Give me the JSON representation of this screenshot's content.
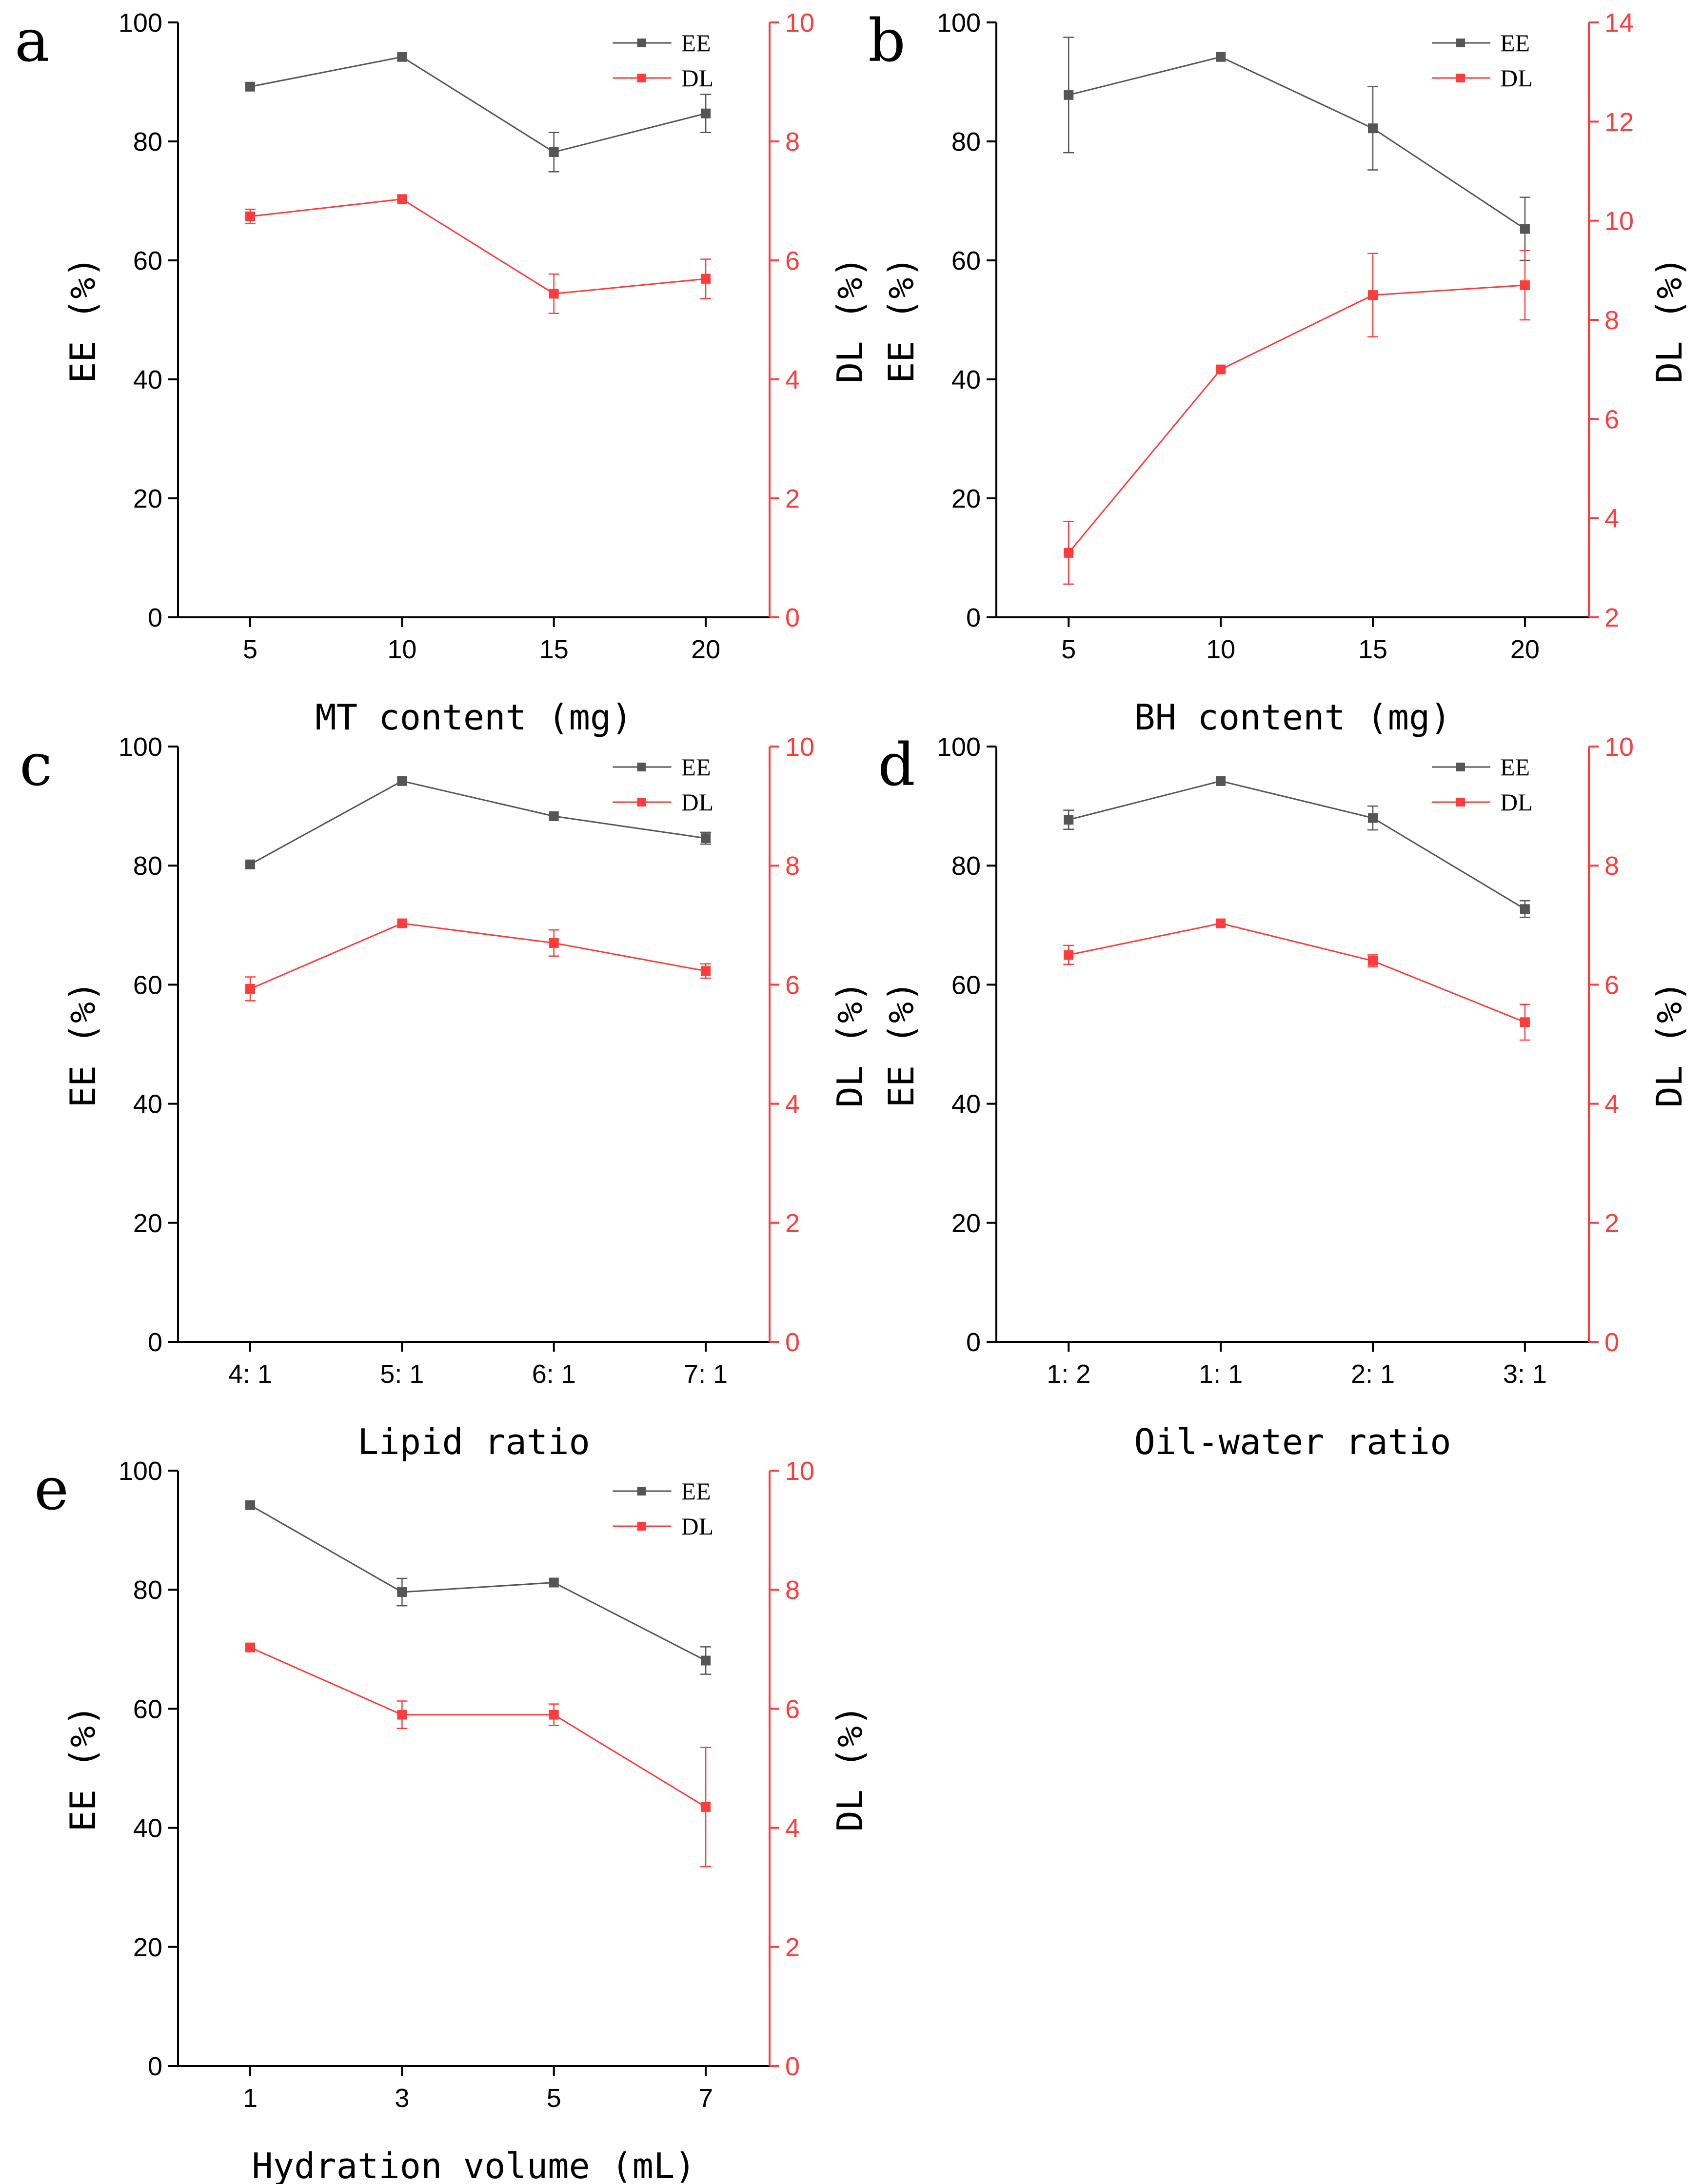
{
  "colors": {
    "ee": "#555555",
    "dl": "#ff3b3b",
    "axis": "#000000",
    "dl_axis": "#ff3b3b"
  },
  "legend": {
    "ee": "EE",
    "dl": "DL",
    "position": "top-right"
  },
  "chart_data": [
    {
      "panel": "a",
      "type": "line",
      "categories": [
        "5",
        "10",
        "15",
        "20"
      ],
      "xlabel": "MT content (mg)",
      "ylabel_left": "EE (%)",
      "ylabel_right": "DL (%)",
      "ylim_left": [
        0,
        100
      ],
      "yticks_left": [
        0,
        20,
        40,
        60,
        80,
        100
      ],
      "ylim_right": [
        0,
        10
      ],
      "yticks_right": [
        0,
        2,
        4,
        6,
        8,
        10
      ],
      "series": [
        {
          "name": "EE",
          "axis": "left",
          "values": [
            89.2,
            94.2,
            78.2,
            84.7
          ],
          "errors": [
            0,
            0,
            3.3,
            3.2
          ]
        },
        {
          "name": "DL",
          "axis": "right",
          "values": [
            6.74,
            7.03,
            5.44,
            5.69
          ],
          "errors": [
            0.12,
            0,
            0.33,
            0.33
          ]
        }
      ]
    },
    {
      "panel": "b",
      "type": "line",
      "categories": [
        "5",
        "10",
        "15",
        "20"
      ],
      "xlabel": "BH content (mg)",
      "ylabel_left": "EE (%)",
      "ylabel_right": "DL (%)",
      "ylim_left": [
        0,
        100
      ],
      "yticks_left": [
        0,
        20,
        40,
        60,
        80,
        100
      ],
      "ylim_right": [
        2,
        14
      ],
      "yticks_right": [
        2,
        4,
        6,
        8,
        10,
        12,
        14
      ],
      "series": [
        {
          "name": "EE",
          "axis": "left",
          "values": [
            87.8,
            94.2,
            82.2,
            65.3
          ],
          "errors": [
            9.7,
            0,
            7.0,
            5.3
          ]
        },
        {
          "name": "DL",
          "axis": "right",
          "values": [
            3.3,
            7.0,
            8.5,
            8.7
          ],
          "errors": [
            0.63,
            0,
            0.84,
            0.7
          ]
        }
      ]
    },
    {
      "panel": "c",
      "type": "line",
      "categories": [
        "4: 1",
        "5: 1",
        "6: 1",
        "7: 1"
      ],
      "xlabel": "Lipid ratio",
      "ylabel_left": "EE (%)",
      "ylabel_right": "DL (%)",
      "ylim_left": [
        0,
        100
      ],
      "yticks_left": [
        0,
        20,
        40,
        60,
        80,
        100
      ],
      "ylim_right": [
        0,
        10
      ],
      "yticks_right": [
        0,
        2,
        4,
        6,
        8,
        10
      ],
      "series": [
        {
          "name": "EE",
          "axis": "left",
          "values": [
            80.2,
            94.2,
            88.3,
            84.6
          ],
          "errors": [
            0,
            0,
            0,
            1.0
          ]
        },
        {
          "name": "DL",
          "axis": "right",
          "values": [
            5.93,
            7.03,
            6.7,
            6.23
          ],
          "errors": [
            0.2,
            0,
            0.22,
            0.12
          ]
        }
      ]
    },
    {
      "panel": "d",
      "type": "line",
      "categories": [
        "1: 2",
        "1: 1",
        "2: 1",
        "3: 1"
      ],
      "xlabel": "Oil-water ratio",
      "ylabel_left": "EE (%)",
      "ylabel_right": "DL (%)",
      "ylim_left": [
        0,
        100
      ],
      "yticks_left": [
        0,
        20,
        40,
        60,
        80,
        100
      ],
      "ylim_right": [
        0,
        10
      ],
      "yticks_right": [
        0,
        2,
        4,
        6,
        8,
        10
      ],
      "series": [
        {
          "name": "EE",
          "axis": "left",
          "values": [
            87.7,
            94.2,
            88.0,
            72.7
          ],
          "errors": [
            1.6,
            0,
            2.0,
            1.4
          ]
        },
        {
          "name": "DL",
          "axis": "right",
          "values": [
            6.5,
            7.03,
            6.4,
            5.37
          ],
          "errors": [
            0.16,
            0,
            0.1,
            0.3
          ]
        }
      ]
    },
    {
      "panel": "e",
      "type": "line",
      "categories": [
        "1",
        "3",
        "5",
        "7"
      ],
      "xlabel": "Hydration volume (mL)",
      "ylabel_left": "EE (%)",
      "ylabel_right": "DL (%)",
      "ylim_left": [
        0,
        100
      ],
      "yticks_left": [
        0,
        20,
        40,
        60,
        80,
        100
      ],
      "ylim_right": [
        0,
        10
      ],
      "yticks_right": [
        0,
        2,
        4,
        6,
        8,
        10
      ],
      "series": [
        {
          "name": "EE",
          "axis": "left",
          "values": [
            94.2,
            79.6,
            81.2,
            68.1
          ],
          "errors": [
            0,
            2.3,
            0,
            2.3
          ]
        },
        {
          "name": "DL",
          "axis": "right",
          "values": [
            7.03,
            5.9,
            5.9,
            4.35
          ],
          "errors": [
            0,
            0.23,
            0.18,
            1.0
          ]
        }
      ]
    }
  ]
}
